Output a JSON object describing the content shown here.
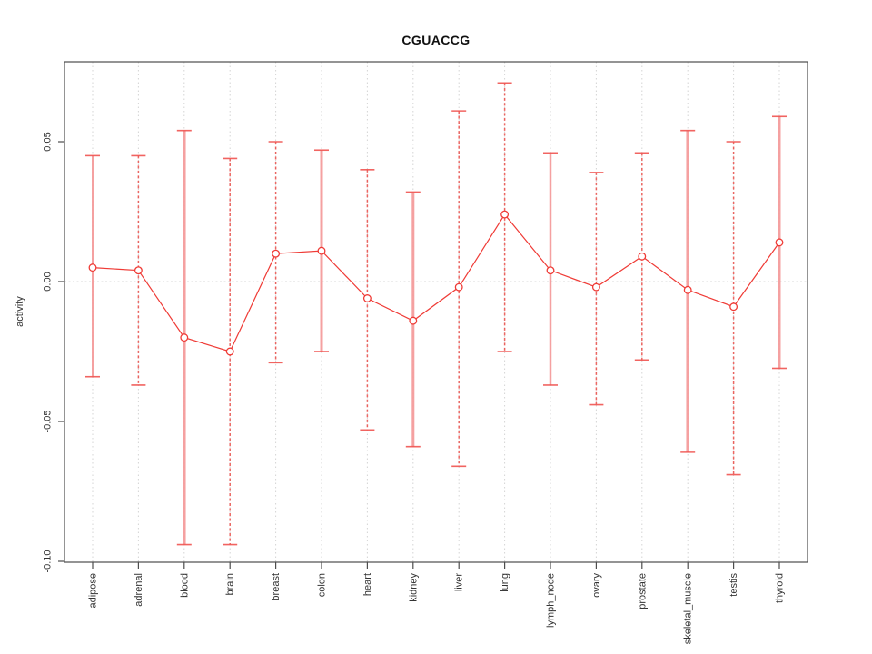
{
  "chart_data": {
    "type": "line",
    "title": "CGUACCG",
    "xlabel": "",
    "ylabel": "activity",
    "categories": [
      "adipose",
      "adrenal",
      "blood",
      "brain",
      "breast",
      "colon",
      "heart",
      "kidney",
      "liver",
      "lung",
      "lymph_node",
      "ovary",
      "prostate",
      "skeletal_muscle",
      "testis",
      "thyroid"
    ],
    "series": [
      {
        "name": "activity",
        "values": [
          0.005,
          0.004,
          -0.02,
          -0.025,
          0.01,
          0.011,
          -0.006,
          -0.014,
          -0.002,
          0.024,
          0.004,
          -0.002,
          0.009,
          -0.003,
          -0.009,
          0.014
        ],
        "lower": [
          -0.034,
          -0.037,
          -0.094,
          -0.094,
          -0.029,
          -0.025,
          -0.053,
          -0.059,
          -0.066,
          -0.025,
          -0.037,
          -0.044,
          -0.028,
          -0.061,
          -0.069,
          -0.031
        ],
        "upper": [
          0.045,
          0.045,
          0.054,
          0.044,
          0.05,
          0.047,
          0.04,
          0.032,
          0.061,
          0.071,
          0.046,
          0.039,
          0.046,
          0.054,
          0.05,
          0.059
        ]
      }
    ],
    "error_bar_styles": [
      "solid",
      "dashed",
      "solid",
      "dashed",
      "dashed",
      "solid",
      "dashed",
      "solid",
      "dashed",
      "dashed",
      "solid",
      "dashed",
      "dashed",
      "solid",
      "dashed",
      "solid"
    ],
    "error_bar_weights": [
      2,
      1.5,
      3.5,
      1.5,
      1.5,
      3,
      1.5,
      3,
      1.5,
      1.5,
      2.5,
      1.5,
      1.5,
      3.5,
      1.5,
      3
    ],
    "ylim": [
      -0.1003,
      0.0786
    ],
    "yticks": [
      0.05,
      0.0,
      -0.05,
      -0.1
    ],
    "ytick_labels": [
      "0.05",
      "0.00",
      "-0.05",
      "-0.10"
    ],
    "grid": "vertical dotted gridlines per category; dotted horizontal line at 0",
    "legend": "none",
    "point_style": "open-circle",
    "colors": {
      "point": "#ef3b36",
      "line": "#ef3b36",
      "error_bar_dashed": "#e8413c",
      "error_bar_solid": "#f49c9c",
      "cap": "#ef5350",
      "grid": "#d4d4d4",
      "zero_line": "#dadada",
      "axis": "#4d4d4d",
      "tick_text": "#333333"
    }
  }
}
